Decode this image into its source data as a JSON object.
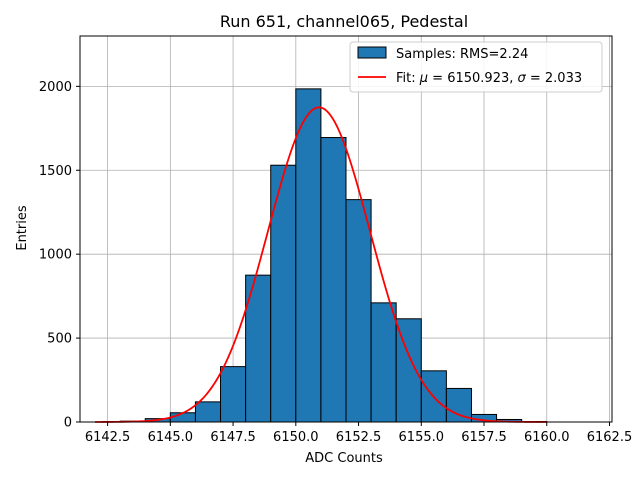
{
  "chart_data": {
    "type": "bar",
    "title": "Run 651, channel065, Pedestal",
    "xlabel": "ADC Counts",
    "ylabel": "Entries",
    "xlim": [
      6141.4,
      6162.6
    ],
    "ylim": [
      0,
      2300
    ],
    "grid": true,
    "legend_position": "top-right",
    "x_ticks": [
      6142.5,
      6145.0,
      6147.5,
      6150.0,
      6152.5,
      6155.0,
      6157.5,
      6160.0,
      6162.5
    ],
    "x_tick_labels": [
      "6142.5",
      "6145.0",
      "6147.5",
      "6150.0",
      "6152.5",
      "6155.0",
      "6157.5",
      "6160.0",
      "6162.5"
    ],
    "y_ticks": [
      0,
      500,
      1000,
      1500,
      2000
    ],
    "y_tick_labels": [
      "0",
      "500",
      "1000",
      "1500",
      "2000"
    ],
    "histogram": {
      "name": "Samples: RMS=2.24",
      "color": "#1f77b4",
      "edgecolor": "#000000",
      "bins": [
        {
          "x0": 6143,
          "x1": 6144,
          "value": 5
        },
        {
          "x0": 6144,
          "x1": 6145,
          "value": 20
        },
        {
          "x0": 6145,
          "x1": 6146,
          "value": 55
        },
        {
          "x0": 6146,
          "x1": 6147,
          "value": 120
        },
        {
          "x0": 6147,
          "x1": 6148,
          "value": 330
        },
        {
          "x0": 6148,
          "x1": 6149,
          "value": 875
        },
        {
          "x0": 6149,
          "x1": 6150,
          "value": 1530
        },
        {
          "x0": 6150,
          "x1": 6151,
          "value": 1985
        },
        {
          "x0": 6151,
          "x1": 6152,
          "value": 1695
        },
        {
          "x0": 6152,
          "x1": 6153,
          "value": 1325
        },
        {
          "x0": 6153,
          "x1": 6154,
          "value": 710
        },
        {
          "x0": 6154,
          "x1": 6155,
          "value": 615
        },
        {
          "x0": 6155,
          "x1": 6156,
          "value": 305
        },
        {
          "x0": 6156,
          "x1": 6157,
          "value": 200
        },
        {
          "x0": 6157,
          "x1": 6158,
          "value": 45
        },
        {
          "x0": 6158,
          "x1": 6159,
          "value": 15
        },
        {
          "x0": 6159,
          "x1": 6160,
          "value": 3
        }
      ]
    },
    "fit": {
      "name": "Fit: μ = 6150.923, σ = 2.033",
      "label_prefix": "Fit: ",
      "mu_symbol": "μ",
      "mu_text": " = 6150.923, ",
      "sigma_symbol": "σ",
      "sigma_text": " = 2.033",
      "color": "#ff0000",
      "mu": 6150.923,
      "sigma": 2.033,
      "amplitude": 1875,
      "x_range": [
        6142,
        6160
      ]
    }
  }
}
